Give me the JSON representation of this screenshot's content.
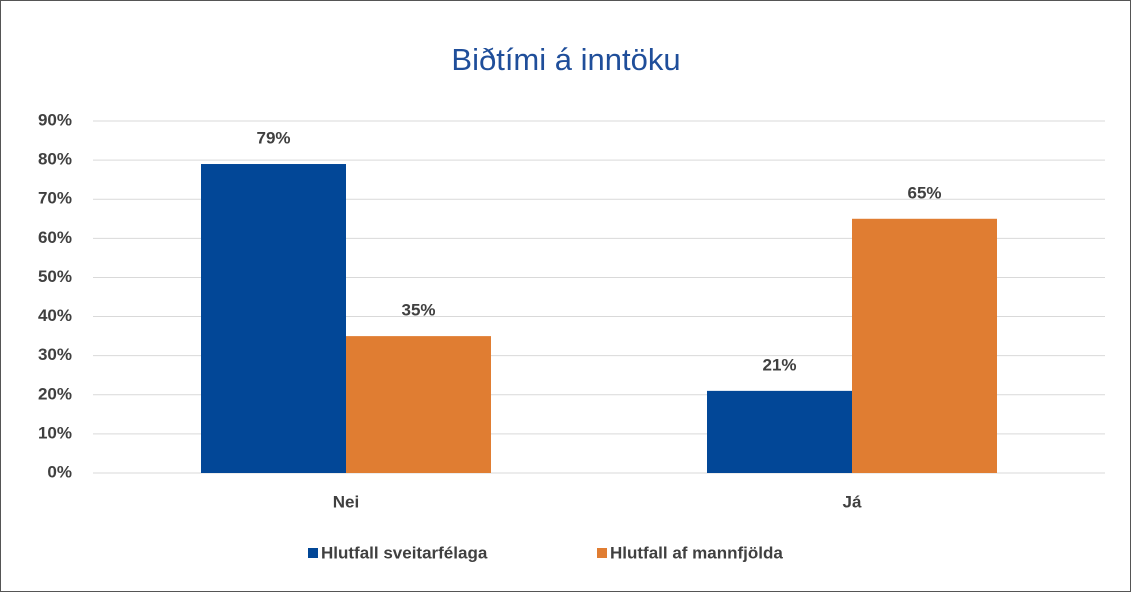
{
  "chart_data": {
    "type": "bar",
    "title": "Biðtími á inntöku",
    "categories": [
      "Nei",
      "Já"
    ],
    "series": [
      {
        "name": "Hlutfall sveitarfélaga",
        "color": "#024797",
        "values": [
          79,
          21
        ],
        "value_labels": [
          "79%",
          "21%"
        ]
      },
      {
        "name": "Hlutfall af mannfjölda",
        "color": "#e07d32",
        "values": [
          35,
          65
        ],
        "value_labels": [
          "35%",
          "65%"
        ]
      }
    ],
    "ylim": [
      0,
      90
    ],
    "yticks": [
      {
        "value": 0,
        "label": "0%"
      },
      {
        "value": 10,
        "label": "10%"
      },
      {
        "value": 20,
        "label": "20%"
      },
      {
        "value": 30,
        "label": "30%"
      },
      {
        "value": 40,
        "label": "40%"
      },
      {
        "value": 50,
        "label": "50%"
      },
      {
        "value": 60,
        "label": "60%"
      },
      {
        "value": 70,
        "label": "70%"
      },
      {
        "value": 80,
        "label": "80%"
      },
      {
        "value": 90,
        "label": "90%"
      }
    ],
    "grid": true,
    "legend": "bottom"
  }
}
